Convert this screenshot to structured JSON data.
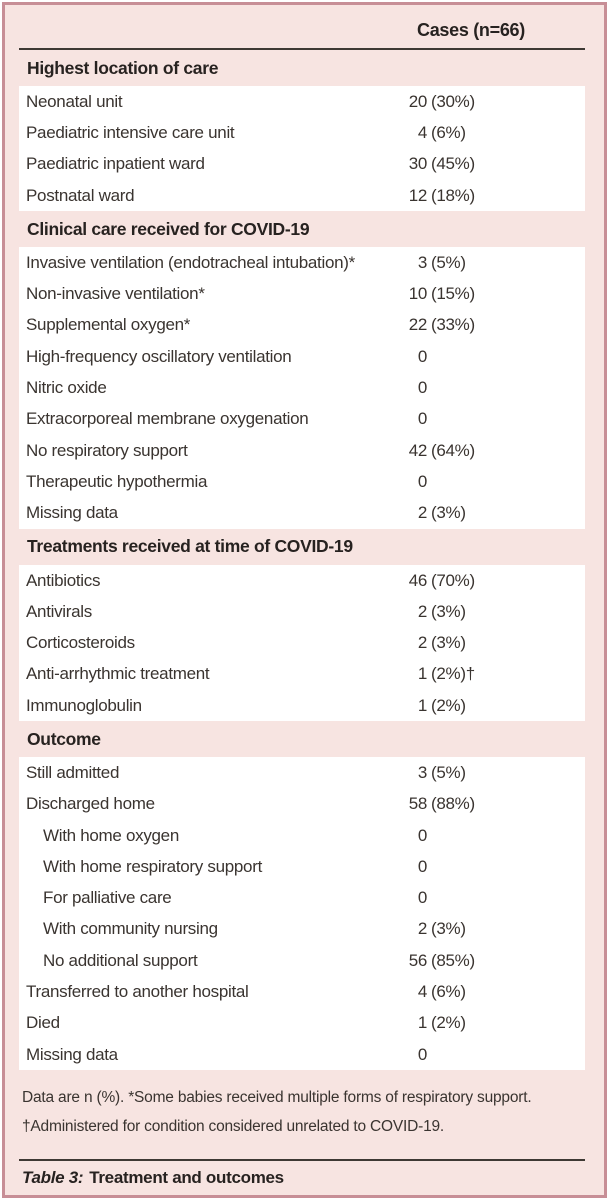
{
  "table": {
    "column_header": "Cases (n=66)",
    "sections": [
      {
        "title": "Highest location of care",
        "rows": [
          {
            "label": "Neonatal unit",
            "num": "20",
            "pct": "(30%)",
            "indent": false
          },
          {
            "label": "Paediatric intensive care unit",
            "num": "4",
            "pct": "(6%)",
            "indent": false
          },
          {
            "label": "Paediatric inpatient ward",
            "num": "30",
            "pct": "(45%)",
            "indent": false
          },
          {
            "label": "Postnatal ward",
            "num": "12",
            "pct": "(18%)",
            "indent": false
          }
        ]
      },
      {
        "title": "Clinical care received for COVID-19",
        "rows": [
          {
            "label": "Invasive ventilation (endotracheal intubation)*",
            "num": "3",
            "pct": "(5%)",
            "indent": false
          },
          {
            "label": "Non-invasive ventilation*",
            "num": "10",
            "pct": "(15%)",
            "indent": false
          },
          {
            "label": "Supplemental oxygen*",
            "num": "22",
            "pct": "(33%)",
            "indent": false
          },
          {
            "label": "High-frequency oscillatory ventilation",
            "num": "0",
            "pct": "",
            "indent": false
          },
          {
            "label": "Nitric oxide",
            "num": "0",
            "pct": "",
            "indent": false
          },
          {
            "label": "Extracorporeal membrane oxygenation",
            "num": "0",
            "pct": "",
            "indent": false
          },
          {
            "label": "No respiratory support",
            "num": "42",
            "pct": "(64%)",
            "indent": false
          },
          {
            "label": "Therapeutic hypothermia",
            "num": "0",
            "pct": "",
            "indent": false
          },
          {
            "label": "Missing data",
            "num": "2",
            "pct": "(3%)",
            "indent": false
          }
        ]
      },
      {
        "title": "Treatments received at time of COVID-19",
        "rows": [
          {
            "label": "Antibiotics",
            "num": "46",
            "pct": "(70%)",
            "indent": false
          },
          {
            "label": "Antivirals",
            "num": "2",
            "pct": "(3%)",
            "indent": false
          },
          {
            "label": "Corticosteroids",
            "num": "2",
            "pct": "(3%)",
            "indent": false
          },
          {
            "label": "Anti-arrhythmic treatment",
            "num": "1",
            "pct": "(2%)†",
            "indent": false
          },
          {
            "label": "Immunoglobulin",
            "num": "1",
            "pct": "(2%)",
            "indent": false
          }
        ]
      },
      {
        "title": "Outcome",
        "rows": [
          {
            "label": "Still admitted",
            "num": "3",
            "pct": "(5%)",
            "indent": false
          },
          {
            "label": "Discharged home",
            "num": "58",
            "pct": "(88%)",
            "indent": false
          },
          {
            "label": "With home oxygen",
            "num": "0",
            "pct": "",
            "indent": true
          },
          {
            "label": "With home respiratory support",
            "num": "0",
            "pct": "",
            "indent": true
          },
          {
            "label": "For palliative care",
            "num": "0",
            "pct": "",
            "indent": true
          },
          {
            "label": "With community nursing",
            "num": "2",
            "pct": "(3%)",
            "indent": true
          },
          {
            "label": "No additional support",
            "num": "56",
            "pct": "(85%)",
            "indent": true
          },
          {
            "label": "Transferred to another hospital",
            "num": "4",
            "pct": "(6%)",
            "indent": false
          },
          {
            "label": "Died",
            "num": "1",
            "pct": "(2%)",
            "indent": false
          },
          {
            "label": "Missing data",
            "num": "0",
            "pct": "",
            "indent": false
          }
        ]
      }
    ],
    "footnote_lines": [
      "Data are n (%). *Some babies received multiple forms of respiratory support.",
      "†Administered for condition considered unrelated to COVID-19."
    ],
    "caption_label": "Table 3:",
    "caption_text": "Treatment and outcomes",
    "colors": {
      "frame_border": "#c78e96",
      "panel_bg": "#f7e4e1",
      "row_bg": "#ffffff",
      "text": "#3a3430",
      "heading_text": "#272220",
      "rule": "#3e3833"
    }
  }
}
